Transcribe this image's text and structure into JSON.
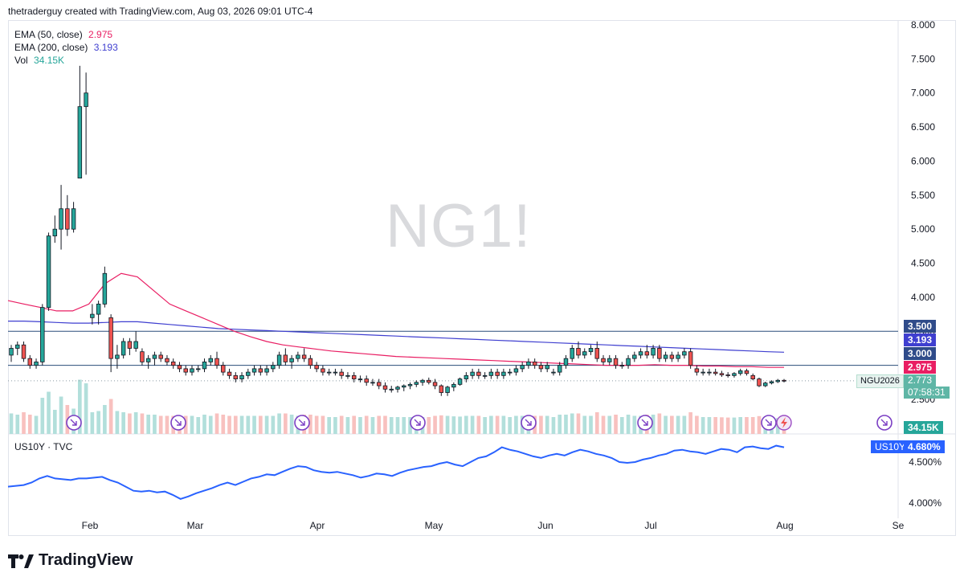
{
  "header": {
    "caption": "thetraderguy created with TradingView.com, Aug 03, 2026 09:01 UTC-4"
  },
  "watermark": "NG1!",
  "legend": {
    "ema50": {
      "label": "EMA (50, close)",
      "value": "2.975",
      "color": "#e91e63"
    },
    "ema200": {
      "label": "EMA (200, close)",
      "value": "3.193",
      "color": "#3f3fd0"
    },
    "vol": {
      "label": "Vol",
      "value": "34.15K",
      "color": "#26a69a"
    }
  },
  "sub_legend": {
    "label": "US10Y · TVC"
  },
  "price_tags": {
    "level_upper": "3.500",
    "ema200": "3.193",
    "level_lower": "3.000",
    "ema50": "2.975",
    "last": "2.773",
    "countdown": "07:58:31",
    "symbol": "NGU2026",
    "volume": "34.15K",
    "us10y_symbol": "US10Y",
    "us10y_value": "4.680%"
  },
  "colors": {
    "up": "#26a69a",
    "down": "#ef5350",
    "up_vol": "#b2dfdb",
    "down_vol": "#f8c1bf",
    "line_blue": "#2962ff",
    "level": "#2a4d7a"
  },
  "brand": {
    "name": "TradingView"
  },
  "chart_data": [
    {
      "type": "candlestick",
      "title": "NG1!",
      "y_ticks": [
        "8.000",
        "7.500",
        "7.000",
        "6.500",
        "6.000",
        "5.500",
        "5.000",
        "4.500",
        "4.000",
        "3.500",
        "3.000",
        "2.500"
      ],
      "ylim": [
        2.5,
        8.0
      ],
      "x_ticks": [
        "Feb",
        "Mar",
        "Apr",
        "May",
        "Jun",
        "Jul",
        "Aug",
        "Se"
      ],
      "horizontal_levels": [
        3.5,
        3.0
      ],
      "last_price": 2.773,
      "ohlc": [
        [
          3.15,
          3.3,
          3.05,
          3.25
        ],
        [
          3.25,
          3.35,
          3.15,
          3.3
        ],
        [
          3.3,
          3.35,
          3.05,
          3.1
        ],
        [
          3.1,
          3.15,
          2.95,
          3.0
        ],
        [
          3.0,
          3.1,
          2.95,
          3.05
        ],
        [
          3.05,
          3.9,
          3.0,
          3.85
        ],
        [
          3.85,
          4.95,
          3.8,
          4.9
        ],
        [
          4.9,
          5.2,
          4.8,
          5.0
        ],
        [
          5.0,
          5.65,
          4.7,
          5.3
        ],
        [
          5.3,
          5.5,
          4.9,
          5.0
        ],
        [
          5.0,
          5.4,
          4.95,
          5.3
        ],
        [
          5.75,
          7.4,
          5.75,
          6.8
        ],
        [
          6.8,
          7.3,
          5.8,
          7.0
        ],
        [
          3.7,
          3.9,
          3.6,
          3.75
        ],
        [
          3.75,
          3.95,
          3.6,
          3.9
        ],
        [
          3.9,
          4.45,
          3.85,
          4.35
        ],
        [
          3.7,
          3.75,
          2.9,
          3.1
        ],
        [
          3.1,
          3.3,
          2.95,
          3.15
        ],
        [
          3.15,
          3.4,
          3.1,
          3.35
        ],
        [
          3.35,
          3.4,
          3.15,
          3.25
        ],
        [
          3.25,
          3.5,
          3.2,
          3.35
        ],
        [
          3.2,
          3.25,
          3.0,
          3.05
        ],
        [
          3.05,
          3.15,
          2.95,
          3.1
        ],
        [
          3.1,
          3.2,
          3.0,
          3.15
        ],
        [
          3.15,
          3.2,
          3.05,
          3.1
        ],
        [
          3.1,
          3.15,
          3.0,
          3.05
        ],
        [
          3.05,
          3.1,
          2.95,
          3.0
        ],
        [
          3.0,
          3.05,
          2.9,
          2.95
        ],
        [
          2.95,
          3.0,
          2.85,
          2.9
        ],
        [
          2.9,
          3.0,
          2.85,
          2.95
        ],
        [
          2.95,
          3.0,
          2.9,
          2.95
        ],
        [
          2.95,
          3.1,
          2.9,
          3.05
        ],
        [
          3.05,
          3.15,
          3.0,
          3.1
        ],
        [
          3.1,
          3.2,
          2.95,
          3.0
        ],
        [
          3.0,
          3.05,
          2.85,
          2.9
        ],
        [
          2.9,
          2.95,
          2.8,
          2.85
        ],
        [
          2.85,
          2.9,
          2.75,
          2.8
        ],
        [
          2.8,
          2.9,
          2.75,
          2.85
        ],
        [
          2.85,
          2.95,
          2.8,
          2.9
        ],
        [
          2.9,
          3.0,
          2.85,
          2.95
        ],
        [
          2.95,
          3.0,
          2.85,
          2.9
        ],
        [
          2.9,
          3.0,
          2.85,
          2.95
        ],
        [
          2.95,
          3.05,
          2.9,
          3.0
        ],
        [
          3.0,
          3.2,
          2.95,
          3.15
        ],
        [
          3.15,
          3.25,
          3.0,
          3.05
        ],
        [
          3.05,
          3.15,
          2.95,
          3.1
        ],
        [
          3.1,
          3.2,
          3.05,
          3.15
        ],
        [
          3.15,
          3.25,
          3.05,
          3.1
        ],
        [
          3.1,
          3.15,
          2.95,
          3.0
        ],
        [
          3.0,
          3.05,
          2.9,
          2.95
        ],
        [
          2.95,
          3.0,
          2.85,
          2.9
        ],
        [
          2.9,
          2.95,
          2.85,
          2.9
        ],
        [
          2.9,
          2.95,
          2.85,
          2.9
        ],
        [
          2.9,
          2.95,
          2.8,
          2.85
        ],
        [
          2.85,
          2.9,
          2.8,
          2.85
        ],
        [
          2.85,
          2.9,
          2.75,
          2.8
        ],
        [
          2.8,
          2.85,
          2.75,
          2.8
        ],
        [
          2.8,
          2.85,
          2.7,
          2.75
        ],
        [
          2.75,
          2.8,
          2.7,
          2.75
        ],
        [
          2.75,
          2.8,
          2.65,
          2.7
        ],
        [
          2.7,
          2.75,
          2.6,
          2.65
        ],
        [
          2.65,
          2.7,
          2.6,
          2.65
        ],
        [
          2.65,
          2.7,
          2.6,
          2.68
        ],
        [
          2.68,
          2.72,
          2.62,
          2.7
        ],
        [
          2.7,
          2.75,
          2.65,
          2.72
        ],
        [
          2.72,
          2.78,
          2.68,
          2.75
        ],
        [
          2.75,
          2.8,
          2.7,
          2.78
        ],
        [
          2.78,
          2.82,
          2.72,
          2.75
        ],
        [
          2.75,
          2.8,
          2.65,
          2.7
        ],
        [
          2.7,
          2.72,
          2.55,
          2.6
        ],
        [
          2.6,
          2.7,
          2.55,
          2.68
        ],
        [
          2.68,
          2.75,
          2.62,
          2.72
        ],
        [
          2.72,
          2.82,
          2.7,
          2.8
        ],
        [
          2.8,
          2.9,
          2.75,
          2.85
        ],
        [
          2.85,
          2.95,
          2.8,
          2.9
        ],
        [
          2.9,
          2.95,
          2.8,
          2.85
        ],
        [
          2.85,
          2.9,
          2.8,
          2.85
        ],
        [
          2.85,
          2.95,
          2.8,
          2.9
        ],
        [
          2.9,
          2.95,
          2.8,
          2.85
        ],
        [
          2.85,
          2.95,
          2.8,
          2.9
        ],
        [
          2.9,
          2.95,
          2.85,
          2.9
        ],
        [
          2.9,
          3.0,
          2.85,
          2.95
        ],
        [
          2.95,
          3.05,
          2.9,
          3.0
        ],
        [
          3.0,
          3.1,
          2.95,
          3.05
        ],
        [
          3.05,
          3.1,
          2.95,
          3.0
        ],
        [
          3.0,
          3.05,
          2.9,
          2.95
        ],
        [
          2.95,
          3.05,
          2.9,
          3.0
        ],
        [
          2.9,
          2.95,
          2.85,
          2.9
        ],
        [
          2.9,
          3.05,
          2.85,
          3.0
        ],
        [
          3.0,
          3.15,
          2.95,
          3.1
        ],
        [
          3.1,
          3.3,
          3.05,
          3.25
        ],
        [
          3.25,
          3.35,
          3.1,
          3.15
        ],
        [
          3.15,
          3.25,
          3.1,
          3.2
        ],
        [
          3.2,
          3.3,
          3.15,
          3.25
        ],
        [
          3.25,
          3.35,
          3.05,
          3.1
        ],
        [
          3.1,
          3.15,
          3.0,
          3.05
        ],
        [
          3.05,
          3.15,
          3.0,
          3.1
        ],
        [
          3.1,
          3.15,
          2.95,
          3.0
        ],
        [
          3.0,
          3.05,
          2.95,
          3.0
        ],
        [
          3.0,
          3.15,
          2.95,
          3.1
        ],
        [
          3.1,
          3.2,
          3.05,
          3.15
        ],
        [
          3.15,
          3.25,
          3.1,
          3.2
        ],
        [
          3.2,
          3.3,
          3.1,
          3.15
        ],
        [
          3.15,
          3.3,
          3.1,
          3.25
        ],
        [
          3.25,
          3.3,
          3.05,
          3.1
        ],
        [
          3.1,
          3.2,
          3.05,
          3.15
        ],
        [
          3.15,
          3.2,
          3.05,
          3.1
        ],
        [
          3.1,
          3.2,
          3.05,
          3.15
        ],
        [
          3.15,
          3.25,
          3.1,
          3.2
        ],
        [
          3.2,
          3.25,
          2.95,
          3.0
        ],
        [
          2.95,
          3.0,
          2.85,
          2.9
        ],
        [
          2.9,
          2.95,
          2.85,
          2.9
        ],
        [
          2.9,
          2.95,
          2.85,
          2.9
        ],
        [
          2.9,
          2.95,
          2.85,
          2.88
        ],
        [
          2.88,
          2.92,
          2.83,
          2.86
        ],
        [
          2.86,
          2.9,
          2.82,
          2.85
        ],
        [
          2.85,
          2.9,
          2.82,
          2.88
        ],
        [
          2.88,
          2.95,
          2.85,
          2.92
        ],
        [
          2.92,
          2.95,
          2.85,
          2.88
        ],
        [
          2.85,
          2.88,
          2.78,
          2.8
        ],
        [
          2.8,
          2.82,
          2.68,
          2.7
        ],
        [
          2.7,
          2.76,
          2.68,
          2.74
        ],
        [
          2.74,
          2.78,
          2.72,
          2.76
        ],
        [
          2.76,
          2.8,
          2.74,
          2.78
        ],
        [
          2.78,
          2.8,
          2.75,
          2.773
        ]
      ],
      "ema50": [
        3.95,
        3.9,
        3.85,
        3.8,
        3.8,
        3.9,
        4.2,
        4.35,
        4.3,
        4.1,
        3.9,
        3.8,
        3.7,
        3.6,
        3.5,
        3.42,
        3.35,
        3.3,
        3.27,
        3.24,
        3.21,
        3.19,
        3.17,
        3.15,
        3.13,
        3.12,
        3.11,
        3.1,
        3.09,
        3.08,
        3.07,
        3.06,
        3.05,
        3.04,
        3.03,
        3.02,
        3.01,
        3.0,
        3.0,
        3.0,
        3.01,
        3.0,
        3.0,
        2.99,
        2.99,
        2.98,
        2.98,
        2.97,
        2.97
      ],
      "ema200": [
        3.65,
        3.65,
        3.64,
        3.63,
        3.62,
        3.62,
        3.63,
        3.64,
        3.64,
        3.62,
        3.6,
        3.58,
        3.56,
        3.54,
        3.53,
        3.52,
        3.51,
        3.5,
        3.49,
        3.48,
        3.47,
        3.46,
        3.45,
        3.44,
        3.43,
        3.42,
        3.41,
        3.4,
        3.39,
        3.38,
        3.37,
        3.36,
        3.35,
        3.34,
        3.33,
        3.32,
        3.31,
        3.3,
        3.29,
        3.28,
        3.27,
        3.26,
        3.25,
        3.24,
        3.23,
        3.22,
        3.21,
        3.2,
        3.193
      ],
      "volume_series_label": "Vol"
    },
    {
      "type": "line",
      "title": "US10Y · TVC",
      "y_ticks": [
        "4.500%",
        "4.000%"
      ],
      "ylim": [
        3.85,
        4.75
      ],
      "values": [
        4.2,
        4.21,
        4.22,
        4.25,
        4.3,
        4.33,
        4.3,
        4.29,
        4.28,
        4.3,
        4.3,
        4.31,
        4.32,
        4.28,
        4.25,
        4.2,
        4.15,
        4.14,
        4.15,
        4.13,
        4.14,
        4.1,
        4.05,
        4.08,
        4.12,
        4.15,
        4.18,
        4.22,
        4.25,
        4.22,
        4.26,
        4.3,
        4.32,
        4.35,
        4.34,
        4.38,
        4.42,
        4.45,
        4.44,
        4.4,
        4.38,
        4.37,
        4.38,
        4.36,
        4.34,
        4.31,
        4.33,
        4.36,
        4.35,
        4.33,
        4.37,
        4.4,
        4.42,
        4.44,
        4.45,
        4.48,
        4.5,
        4.47,
        4.45,
        4.5,
        4.55,
        4.57,
        4.62,
        4.68,
        4.65,
        4.63,
        4.6,
        4.57,
        4.55,
        4.58,
        4.6,
        4.58,
        4.62,
        4.65,
        4.63,
        4.6,
        4.58,
        4.55,
        4.5,
        4.49,
        4.5,
        4.53,
        4.55,
        4.58,
        4.6,
        4.64,
        4.65,
        4.63,
        4.62,
        4.6,
        4.63,
        4.66,
        4.65,
        4.62,
        4.68,
        4.69,
        4.67,
        4.66,
        4.7,
        4.68
      ]
    }
  ]
}
